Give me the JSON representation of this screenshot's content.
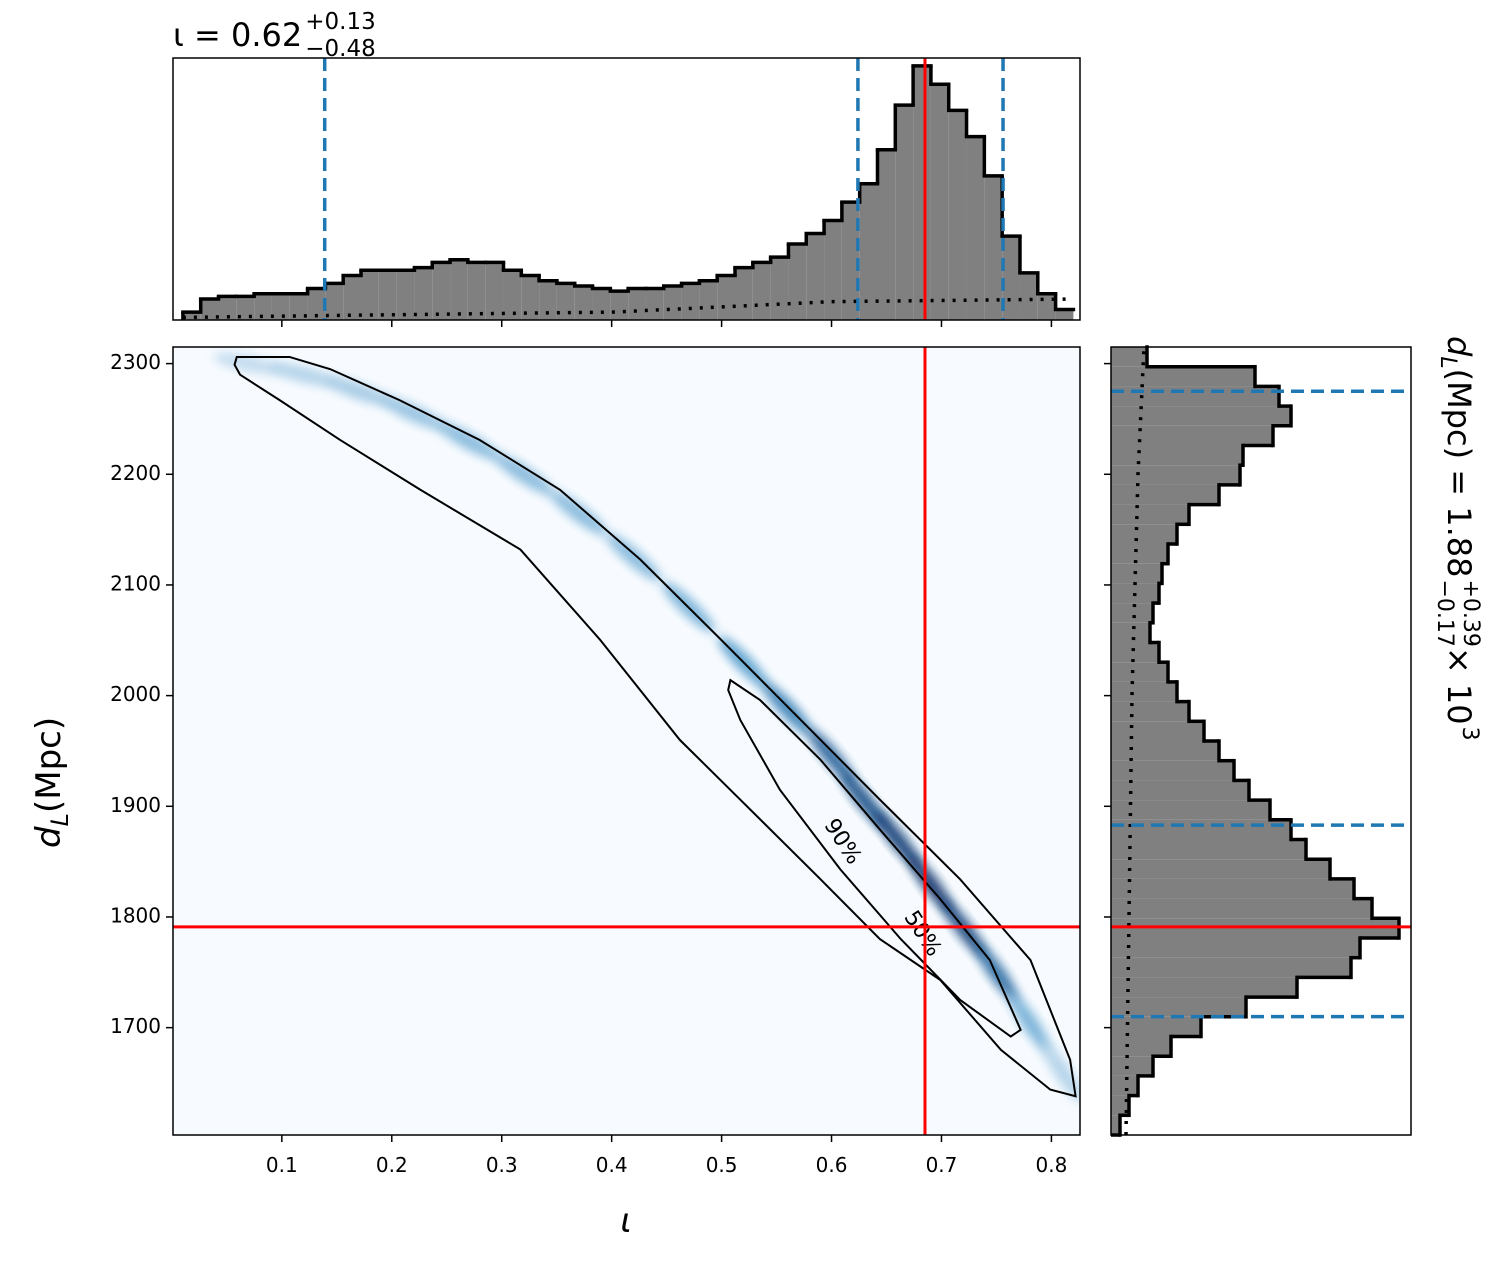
{
  "chart_data": [
    {
      "type": "histogram",
      "orientation": "vertical",
      "title": {
        "main": "ι = 0.62",
        "upper": "+0.13",
        "lower": "−0.48"
      },
      "bins": [
        0.01,
        0.0262,
        0.0424,
        0.0586,
        0.0748,
        0.091,
        0.1072,
        0.1234,
        0.1396,
        0.1558,
        0.172,
        0.1882,
        0.2044,
        0.2206,
        0.2368,
        0.253,
        0.2692,
        0.2854,
        0.3016,
        0.3178,
        0.334,
        0.3502,
        0.3664,
        0.3826,
        0.3988,
        0.415,
        0.4312,
        0.4474,
        0.4636,
        0.4798,
        0.496,
        0.5122,
        0.5284,
        0.5446,
        0.5608,
        0.577,
        0.5932,
        0.6094,
        0.6256,
        0.6418,
        0.658,
        0.6742,
        0.6904,
        0.7066,
        0.7228,
        0.739,
        0.7552,
        0.7714,
        0.7876,
        0.8038,
        0.82
      ],
      "values": [
        3,
        8,
        9,
        9,
        10,
        10,
        10,
        12,
        14,
        17,
        19,
        19,
        19,
        20,
        22,
        23,
        22,
        22,
        19,
        17,
        15,
        14,
        13,
        12,
        11,
        12,
        12,
        13,
        14,
        15,
        17,
        20,
        22,
        24,
        29,
        33,
        38,
        45,
        52,
        65,
        82,
        97,
        90,
        80,
        70,
        55,
        32,
        18,
        10,
        4
      ],
      "color": "#808080",
      "edgecolor": "#000000",
      "ylim": [
        0,
        100
      ],
      "prior": {
        "x": [
          0.01,
          0.2,
          0.4,
          0.6,
          0.82
        ],
        "values": [
          1,
          2,
          3,
          7,
          8
        ]
      },
      "quantiles": [
        0.139,
        0.624,
        0.756
      ],
      "quantile_color": "#1f77b4",
      "truth": 0.685,
      "truth_color": "#ff0000"
    },
    {
      "type": "density2d",
      "xlabel": "ι",
      "ylabel": {
        "main": "d",
        "sub": "L",
        "rest": " (Mpc)"
      },
      "xlim": [
        0.001,
        0.826
      ],
      "ylim": [
        1603,
        2315
      ],
      "xticks": [
        0.1,
        0.2,
        0.3,
        0.4,
        0.5,
        0.6,
        0.7,
        0.8
      ],
      "yticks": [
        1700,
        1800,
        1900,
        2000,
        2100,
        2200,
        2300
      ],
      "background": "#f7fbff",
      "ridge": {
        "x": [
          0.07,
          0.12,
          0.17,
          0.22,
          0.27,
          0.32,
          0.37,
          0.42,
          0.47,
          0.52,
          0.56,
          0.6,
          0.63,
          0.66,
          0.69,
          0.72,
          0.75,
          0.78,
          0.81
        ],
        "y": [
          2300,
          2290,
          2275,
          2255,
          2230,
          2200,
          2165,
          2125,
          2080,
          2030,
          1988,
          1945,
          1905,
          1870,
          1830,
          1790,
          1750,
          1705,
          1660
        ],
        "density": [
          0.1,
          0.15,
          0.2,
          0.25,
          0.3,
          0.3,
          0.3,
          0.3,
          0.35,
          0.45,
          0.6,
          0.75,
          0.85,
          0.95,
          1,
          0.9,
          0.7,
          0.35,
          0.15
        ]
      },
      "contours": [
        {
          "label": "90%",
          "x": [
            0.059,
            0.107,
            0.144,
            0.207,
            0.28,
            0.353,
            0.426,
            0.499,
            0.572,
            0.644,
            0.717,
            0.781,
            0.817,
            0.822,
            0.799,
            0.754,
            0.699,
            0.644,
            0.59,
            0.517,
            0.462,
            0.389,
            0.317,
            0.226,
            0.153,
            0.098,
            0.062,
            0.057
          ],
          "y": [
            2306,
            2306,
            2295,
            2267,
            2231,
            2186,
            2123,
            2051,
            1978,
            1906,
            1834,
            1761,
            1671,
            1638,
            1644,
            1680,
            1743,
            1780,
            1834,
            1906,
            1960,
            2051,
            2132,
            2186,
            2231,
            2267,
            2290,
            2299
          ]
        },
        {
          "label": "50%",
          "x": [
            0.508,
            0.535,
            0.59,
            0.644,
            0.699,
            0.744,
            0.772,
            0.763,
            0.717,
            0.663,
            0.608,
            0.553,
            0.517,
            0.506
          ],
          "y": [
            2014,
            1996,
            1942,
            1879,
            1816,
            1761,
            1698,
            1692,
            1725,
            1780,
            1843,
            1915,
            1978,
            2005
          ]
        }
      ],
      "truth": {
        "x": 0.685,
        "y": 1791
      },
      "truth_color": "#ff0000"
    },
    {
      "type": "histogram",
      "orientation": "horizontal",
      "label": {
        "main": "d",
        "sub": "L",
        "rest": " (Mpc) = 1.88",
        "upper": "+0.39",
        "lower": "−0.17",
        "tail": " × 10",
        "exp": "3"
      },
      "bins": [
        1603,
        1620.8,
        1638.6,
        1656.4,
        1674.2,
        1692,
        1709.8,
        1727.6,
        1745.4,
        1763.2,
        1781,
        1798.8,
        1816.6,
        1834.4,
        1852.2,
        1870,
        1887.8,
        1905.6,
        1923.4,
        1941.2,
        1959,
        1976.8,
        1994.6,
        2012.4,
        2030.2,
        2048,
        2065.8,
        2083.6,
        2101.4,
        2119.2,
        2137,
        2154.8,
        2172.6,
        2190.4,
        2208.2,
        2226,
        2243.8,
        2261.6,
        2279.4,
        2297.2,
        2315
      ],
      "values": [
        3,
        6,
        9,
        14,
        20,
        30,
        45,
        62,
        80,
        83,
        96,
        87,
        81,
        73,
        65,
        60,
        53,
        46,
        41,
        36,
        31,
        26,
        22,
        19,
        16,
        13,
        14,
        16,
        17,
        19,
        22,
        26,
        36,
        43,
        44,
        54,
        60,
        56,
        48,
        12
      ],
      "color": "#808080",
      "edgecolor": "#000000",
      "xlim": [
        0,
        100
      ],
      "prior": {
        "y": [
          1603,
          1800,
          2000,
          2200,
          2315
        ],
        "values": [
          5,
          6,
          7,
          9,
          11
        ]
      },
      "quantiles": [
        1710,
        1883,
        2275
      ],
      "quantile_color": "#1f77b4",
      "truth": 1791,
      "truth_color": "#ff0000"
    }
  ]
}
